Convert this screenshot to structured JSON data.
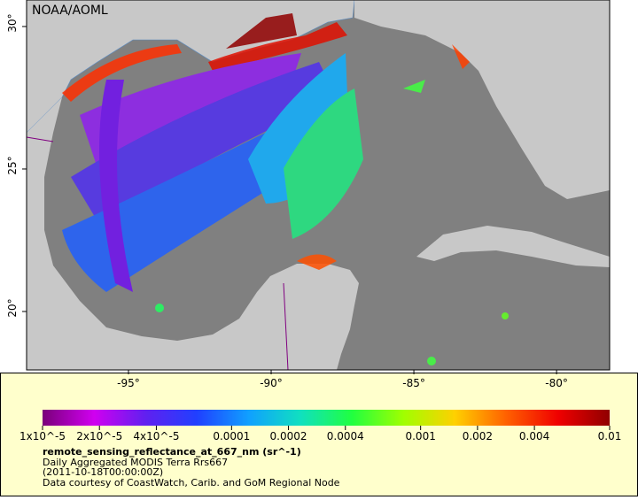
{
  "map": {
    "credit": "NOAA/AOML",
    "lon_range": [
      -98.57,
      -78.14
    ],
    "lat_range": [
      17.95,
      30.93
    ],
    "lon_ticks": [
      {
        "value": -95,
        "label": "-95°"
      },
      {
        "value": -90,
        "label": "-90°"
      },
      {
        "value": -85,
        "label": "-85°"
      },
      {
        "value": -80,
        "label": "-80°"
      }
    ],
    "lat_ticks": [
      {
        "value": 30,
        "label": "30°"
      },
      {
        "value": 25,
        "label": "25°"
      },
      {
        "value": 20,
        "label": "20°"
      }
    ],
    "colorbar": {
      "range": [
        1e-05,
        0.01
      ],
      "log_scale": true,
      "colors": [
        "#7a007a",
        "#d000f0",
        "#6020f0",
        "#2040ff",
        "#10a0ff",
        "#10e0c0",
        "#20ff40",
        "#a0ff00",
        "#ffd000",
        "#ff6000",
        "#f00000",
        "#900000"
      ],
      "ticks": [
        {
          "value": 1e-05,
          "label": "1x10^-5"
        },
        {
          "value": 2e-05,
          "label": "2x10^-5"
        },
        {
          "value": 4e-05,
          "label": "4x10^-5"
        },
        {
          "value": 0.0001,
          "label": "0.0001"
        },
        {
          "value": 0.0002,
          "label": "0.0002"
        },
        {
          "value": 0.0004,
          "label": "0.0004"
        },
        {
          "value": 0.001,
          "label": "0.001"
        },
        {
          "value": 0.002,
          "label": "0.002"
        },
        {
          "value": 0.004,
          "label": "0.004"
        },
        {
          "value": 0.01,
          "label": "0.01"
        }
      ]
    },
    "legend": {
      "variable": "remote_sensing_reflectance_at_667_nm (sr^-1)",
      "lines": [
        "Daily Aggregated MODIS Terra Rrs667",
        "(2011-10-18T00:00:00Z)",
        "Data courtesy of CoastWatch, Carib. and GoM Regional Node"
      ]
    }
  }
}
